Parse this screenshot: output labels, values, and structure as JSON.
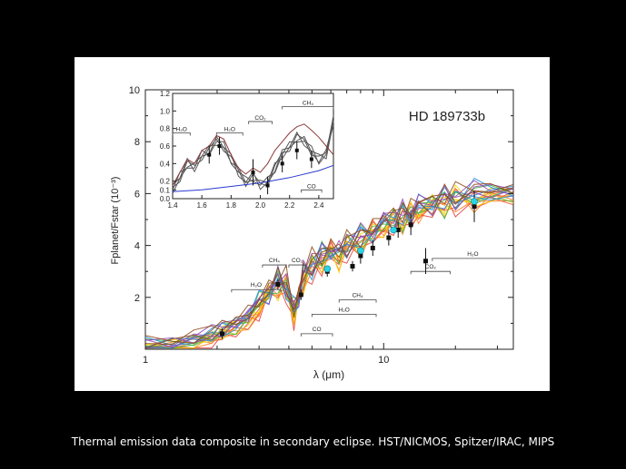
{
  "caption": "Thermal emission data composite in secondary eclipse. HST/NICMOS, Spitzer/IRAC, MIPS",
  "chart_data": [
    {
      "type": "line",
      "title": "HD 189733b",
      "xlabel": "λ (μm)",
      "ylabel": "Fplanet/Fstar (10⁻³)",
      "xscale": "log",
      "xlim": [
        1,
        35
      ],
      "ylim": [
        0,
        10
      ],
      "xticks": [
        1,
        10
      ],
      "yticks": [
        2,
        4,
        6,
        8,
        10
      ],
      "xtick_labels": [
        "1",
        "10"
      ],
      "ytick_labels": [
        "2",
        "4",
        "6",
        "8",
        "10"
      ],
      "model_colors": [
        "#e53935",
        "#ff7a1a",
        "#f5d100",
        "#3cb043",
        "#1e88e5",
        "#8e44ad",
        "#8b4513"
      ],
      "model_base": {
        "x": [
          1.0,
          1.3,
          1.6,
          1.9,
          2.1,
          2.4,
          2.7,
          3.0,
          3.3,
          3.6,
          3.9,
          4.2,
          4.4,
          4.6,
          5.0,
          5.5,
          6.0,
          6.5,
          7.0,
          8.0,
          9.0,
          10.0,
          11.0,
          12.0,
          13.0,
          14.0,
          16.0,
          18.0,
          20.0,
          24.0,
          28.0,
          35.0
        ],
        "y": [
          0.1,
          0.12,
          0.3,
          0.5,
          0.7,
          0.9,
          1.2,
          1.7,
          2.2,
          2.6,
          2.4,
          1.4,
          2.0,
          2.8,
          3.2,
          3.5,
          3.8,
          3.6,
          4.0,
          4.2,
          4.5,
          4.8,
          5.0,
          5.1,
          5.2,
          5.4,
          5.6,
          5.7,
          5.8,
          5.9,
          6.0,
          6.0
        ]
      },
      "data_points": [
        {
          "x": 2.1,
          "y": 0.6,
          "err": 0.2
        },
        {
          "x": 3.6,
          "y": 2.5,
          "err": 0.2
        },
        {
          "x": 4.5,
          "y": 2.1,
          "err": 0.2
        },
        {
          "x": 5.8,
          "y": 3.0,
          "err": 0.2
        },
        {
          "x": 7.4,
          "y": 3.2,
          "err": 0.2
        },
        {
          "x": 8.0,
          "y": 3.6,
          "err": 0.3
        },
        {
          "x": 9.0,
          "y": 3.9,
          "err": 0.3
        },
        {
          "x": 10.5,
          "y": 4.3,
          "err": 0.3
        },
        {
          "x": 11.5,
          "y": 4.6,
          "err": 0.3
        },
        {
          "x": 13.0,
          "y": 4.8,
          "err": 0.4
        },
        {
          "x": 15.0,
          "y": 3.4,
          "err": 0.5
        },
        {
          "x": 24.0,
          "y": 5.5,
          "err": 0.6
        }
      ],
      "cyan_points": [
        {
          "x": 5.8,
          "y": 3.1
        },
        {
          "x": 8.0,
          "y": 3.8
        },
        {
          "x": 11.0,
          "y": 4.6
        },
        {
          "x": 24.0,
          "y": 5.7
        }
      ],
      "annotations": [
        {
          "text": "CH₄",
          "x1": 3.1,
          "x2": 3.9,
          "y": 3.25
        },
        {
          "text": "CO₂",
          "x1": 4.0,
          "x2": 4.7,
          "y": 3.25
        },
        {
          "text": "H₂O",
          "x1": 2.3,
          "x2": 3.7,
          "y": 2.3
        },
        {
          "text": "CH₄",
          "x1": 6.5,
          "x2": 9.3,
          "y": 1.9
        },
        {
          "text": "H₂O",
          "x1": 5.0,
          "x2": 9.3,
          "y": 1.35
        },
        {
          "text": "CO",
          "x1": 4.5,
          "x2": 6.1,
          "y": 0.6
        },
        {
          "text": "CO₂",
          "x1": 13.0,
          "x2": 19.0,
          "y": 3.0
        },
        {
          "text": "H₂O",
          "x1": 16.0,
          "x2": 35.0,
          "y": 3.5
        }
      ]
    },
    {
      "type": "line",
      "title": "",
      "xlim": [
        1.4,
        2.5
      ],
      "ylim": [
        0.0,
        1.2
      ],
      "xticks": [
        1.4,
        1.6,
        1.8,
        2.0,
        2.2,
        2.4
      ],
      "yticks": [
        0.0,
        0.1,
        0.2,
        0.4,
        0.6,
        0.8,
        1.0,
        1.2
      ],
      "xtick_labels": [
        "1.4",
        "1.6",
        "1.8",
        "2.0",
        "2.2",
        "2.4"
      ],
      "ytick_labels": [
        "0.0",
        "0.1",
        "0.2",
        "0.4",
        "0.6",
        "0.8",
        "1.0",
        "1.2"
      ],
      "series": [
        {
          "color": "#555555",
          "x": [
            1.4,
            1.45,
            1.5,
            1.55,
            1.6,
            1.65,
            1.7,
            1.75,
            1.8,
            1.85,
            1.9,
            1.95,
            2.0,
            2.05,
            2.1,
            2.15,
            2.2,
            2.25,
            2.3,
            2.35,
            2.4,
            2.45,
            2.5
          ],
          "y": [
            0.1,
            0.25,
            0.4,
            0.35,
            0.5,
            0.55,
            0.65,
            0.6,
            0.45,
            0.3,
            0.2,
            0.25,
            0.15,
            0.2,
            0.35,
            0.5,
            0.6,
            0.7,
            0.65,
            0.55,
            0.45,
            0.5,
            0.9
          ]
        },
        {
          "color": "#8b3a3a",
          "x": [
            1.4,
            1.45,
            1.5,
            1.55,
            1.6,
            1.65,
            1.7,
            1.75,
            1.8,
            1.85,
            1.9,
            1.95,
            2.0,
            2.05,
            2.1,
            2.15,
            2.2,
            2.25,
            2.3,
            2.35,
            2.4,
            2.45,
            2.5
          ],
          "y": [
            0.15,
            0.3,
            0.45,
            0.4,
            0.55,
            0.6,
            0.72,
            0.68,
            0.5,
            0.35,
            0.28,
            0.35,
            0.3,
            0.4,
            0.55,
            0.65,
            0.75,
            0.82,
            0.85,
            0.78,
            0.7,
            0.6,
            0.5
          ]
        },
        {
          "color": "#2a3ad0",
          "x": [
            1.4,
            1.6,
            1.8,
            2.0,
            2.2,
            2.4,
            2.5
          ],
          "y": [
            0.08,
            0.1,
            0.14,
            0.18,
            0.24,
            0.32,
            0.38
          ]
        }
      ],
      "data_points": [
        {
          "x": 1.65,
          "y": 0.5,
          "err": 0.1
        },
        {
          "x": 1.72,
          "y": 0.6,
          "err": 0.1
        },
        {
          "x": 1.95,
          "y": 0.3,
          "err": 0.15
        },
        {
          "x": 2.05,
          "y": 0.15,
          "err": 0.1
        },
        {
          "x": 2.15,
          "y": 0.4,
          "err": 0.1
        },
        {
          "x": 2.25,
          "y": 0.55,
          "err": 0.1
        },
        {
          "x": 2.35,
          "y": 0.45,
          "err": 0.1
        }
      ],
      "annotations": [
        {
          "text": "H₂O",
          "x1": 1.4,
          "x2": 1.52,
          "y": 0.75
        },
        {
          "text": "H₂O",
          "x1": 1.7,
          "x2": 1.88,
          "y": 0.75
        },
        {
          "text": "CO₂",
          "x1": 1.92,
          "x2": 2.08,
          "y": 0.88
        },
        {
          "text": "CH₄",
          "x1": 2.15,
          "x2": 2.5,
          "y": 1.05
        },
        {
          "text": "CO",
          "x1": 2.28,
          "x2": 2.42,
          "y": 0.1
        }
      ]
    }
  ]
}
